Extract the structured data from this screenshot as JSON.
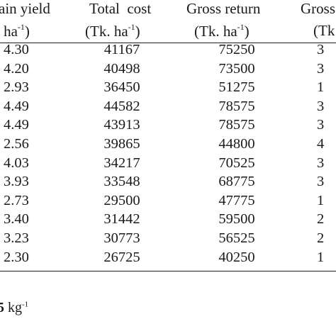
{
  "headers": {
    "grain_line1": "ain yield",
    "grain_line2_pre": "t ha",
    "grain_line2_sup": "-1",
    "grain_line2_post": ")",
    "cost_line1": "Total  cost",
    "cost_line2_pre": "(Tk. ha",
    "cost_line2_sup": "-1",
    "cost_line2_post": ")",
    "gross_line1": "Gross return",
    "gross_line2_pre": "(Tk. ha",
    "gross_line2_sup": "-1",
    "gross_line2_post": ")",
    "margin_line1": "Gross",
    "margin_line2": "(Tk"
  },
  "rows": [
    {
      "grain": "4.30",
      "cost": "41167",
      "gross": "75250",
      "margin": "3"
    },
    {
      "grain": "4.20",
      "cost": "40498",
      "gross": "73500",
      "margin": "3"
    },
    {
      "grain": "2.93",
      "cost": "36450",
      "gross": "51275",
      "margin": "1"
    },
    {
      "grain": "4.49",
      "cost": "44582",
      "gross": "78575",
      "margin": "3"
    },
    {
      "grain": "4.49",
      "cost": "43913",
      "gross": "78575",
      "margin": "3"
    },
    {
      "grain": "2.56",
      "cost": "39865",
      "gross": "44800",
      "margin": "4"
    },
    {
      "grain": "4.03",
      "cost": "34217",
      "gross": "70525",
      "margin": "3"
    },
    {
      "grain": "3.93",
      "cost": "33548",
      "gross": "68775",
      "margin": "3"
    },
    {
      "grain": "2.73",
      "cost": "29500",
      "gross": "47775",
      "margin": "1"
    },
    {
      "grain": "3.40",
      "cost": "31442",
      "gross": "59500",
      "margin": "2"
    },
    {
      "grain": "3.23",
      "cost": "30773",
      "gross": "56525",
      "margin": "2"
    },
    {
      "grain": "2.30",
      "cost": "26725",
      "gross": "40250",
      "margin": "1"
    }
  ],
  "footnote": {
    "bold": "5",
    "unit_pre": " kg",
    "unit_sup": "-1"
  }
}
